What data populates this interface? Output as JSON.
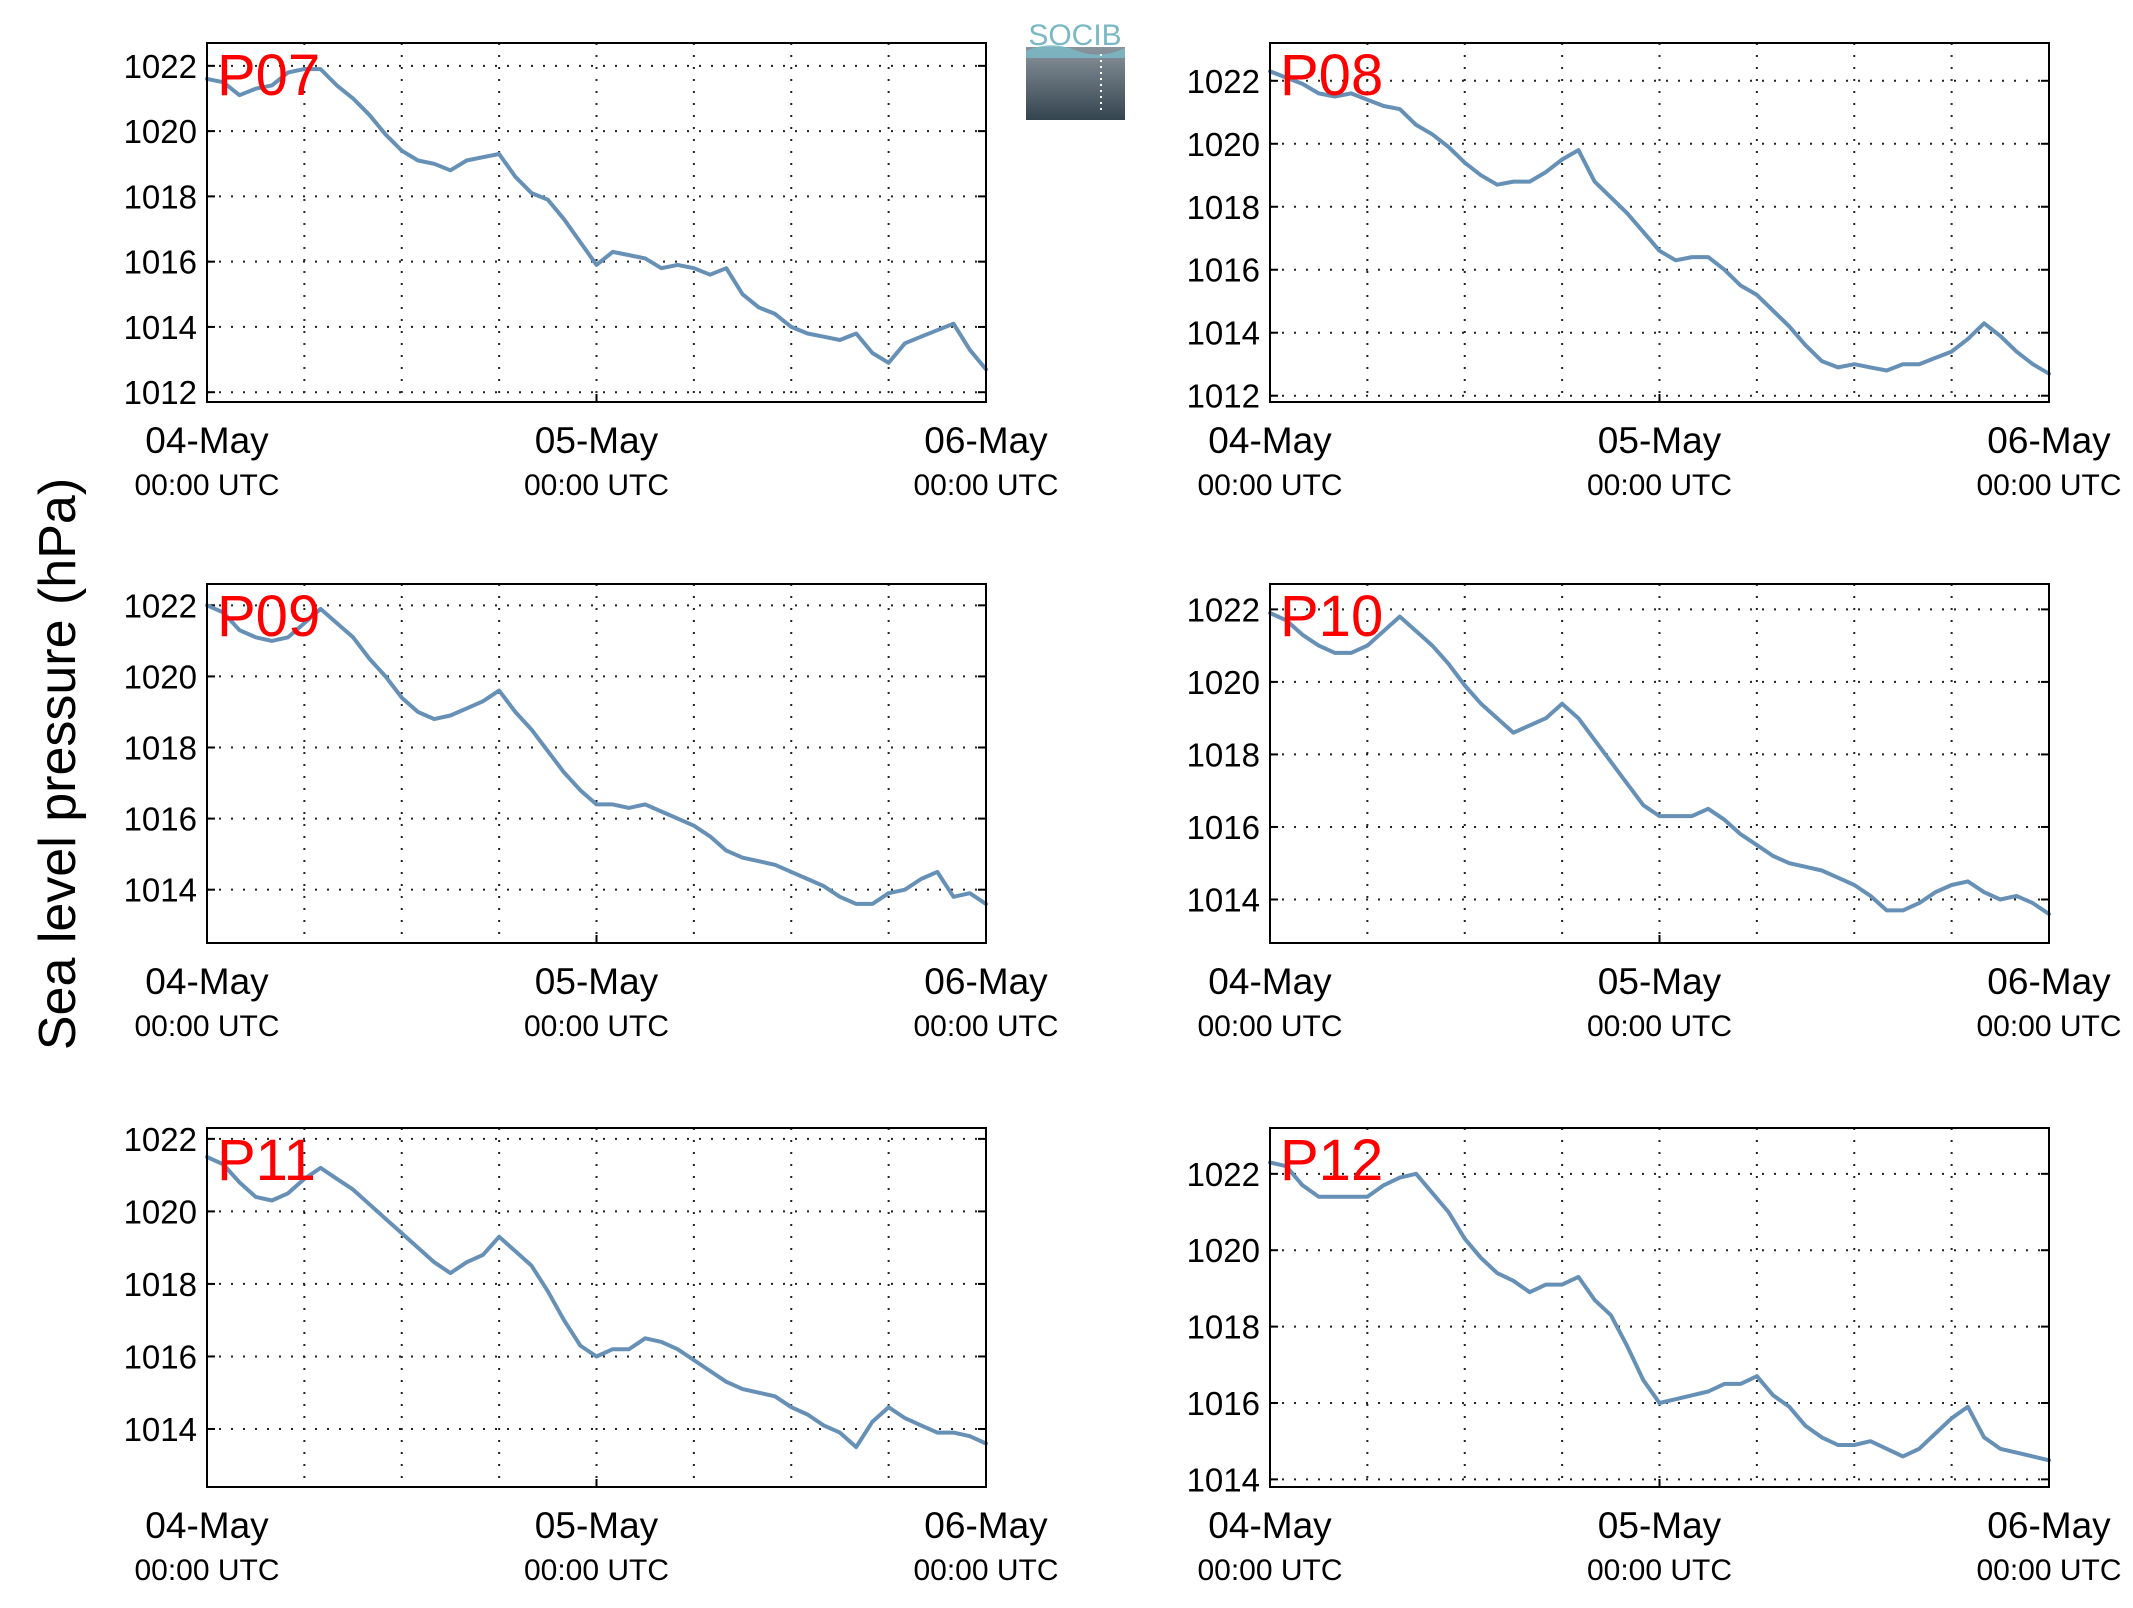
{
  "figure": {
    "ylabel": "Sea level pressure (hPa)",
    "logo": {
      "text": "SOCIB",
      "color_top": "#7ab8c6",
      "color_bottom": "#3a4a55"
    },
    "colors": {
      "line": "#6690b5",
      "panel_label": "#ff0000",
      "grid": "#222222"
    }
  },
  "chart_data": [
    {
      "type": "line",
      "title": "P07",
      "xlabel": "",
      "ylabel": "Sea level pressure (hPa)",
      "x_ticks": [
        {
          "line1": "04-May",
          "line2": "00:00 UTC",
          "hour": 0
        },
        {
          "line1": "05-May",
          "line2": "00:00 UTC",
          "hour": 24
        },
        {
          "line1": "06-May",
          "line2": "00:00 UTC",
          "hour": 48
        }
      ],
      "xlim_hours_from_04May_0000UTC": [
        0,
        48
      ],
      "ylim": [
        1011.7,
        1022.7
      ],
      "yticks": [
        1012,
        1014,
        1016,
        1018,
        1020,
        1022
      ],
      "grid": true,
      "series": [
        {
          "x_hours": [
            0,
            1,
            2,
            3,
            4,
            5,
            6,
            7,
            8,
            9,
            10,
            11,
            12,
            13,
            14,
            15,
            16,
            17,
            18,
            19,
            20,
            21,
            22,
            23,
            24,
            25,
            26,
            27,
            28,
            29,
            30,
            31,
            32,
            33,
            34,
            35,
            36,
            37,
            38,
            39,
            40,
            41,
            42,
            43,
            44,
            45,
            46,
            47,
            48
          ],
          "values": [
            1021.6,
            1021.5,
            1021.1,
            1021.3,
            1021.4,
            1021.8,
            1021.9,
            1021.9,
            1021.4,
            1021.0,
            1020.5,
            1019.9,
            1019.4,
            1019.1,
            1019.0,
            1018.8,
            1019.1,
            1019.2,
            1019.3,
            1018.6,
            1018.1,
            1017.9,
            1017.3,
            1016.6,
            1015.9,
            1016.3,
            1016.2,
            1016.1,
            1015.8,
            1015.9,
            1015.8,
            1015.6,
            1015.8,
            1015.0,
            1014.6,
            1014.4,
            1014.0,
            1013.8,
            1013.7,
            1013.6,
            1013.8,
            1013.2,
            1012.9,
            1013.5,
            1013.7,
            1013.9,
            1014.1,
            1013.3,
            1012.7
          ]
        }
      ]
    },
    {
      "type": "line",
      "title": "P08",
      "xlabel": "",
      "ylabel": "Sea level pressure (hPa)",
      "x_ticks": [
        {
          "line1": "04-May",
          "line2": "00:00 UTC",
          "hour": 0
        },
        {
          "line1": "05-May",
          "line2": "00:00 UTC",
          "hour": 24
        },
        {
          "line1": "06-May",
          "line2": "00:00 UTC",
          "hour": 48
        }
      ],
      "xlim_hours_from_04May_0000UTC": [
        0,
        48
      ],
      "ylim": [
        1011.8,
        1023.2
      ],
      "yticks": [
        1012,
        1014,
        1016,
        1018,
        1020,
        1022
      ],
      "grid": true,
      "series": [
        {
          "x_hours": [
            0,
            1,
            2,
            3,
            4,
            5,
            6,
            7,
            8,
            9,
            10,
            11,
            12,
            13,
            14,
            15,
            16,
            17,
            18,
            19,
            20,
            21,
            22,
            23,
            24,
            25,
            26,
            27,
            28,
            29,
            30,
            31,
            32,
            33,
            34,
            35,
            36,
            37,
            38,
            39,
            40,
            41,
            42,
            43,
            44,
            45,
            46,
            47,
            48
          ],
          "values": [
            1022.3,
            1022.1,
            1021.9,
            1021.6,
            1021.5,
            1021.6,
            1021.4,
            1021.2,
            1021.1,
            1020.6,
            1020.3,
            1019.9,
            1019.4,
            1019.0,
            1018.7,
            1018.8,
            1018.8,
            1019.1,
            1019.5,
            1019.8,
            1018.8,
            1018.3,
            1017.8,
            1017.2,
            1016.6,
            1016.3,
            1016.4,
            1016.4,
            1016.0,
            1015.5,
            1015.2,
            1014.7,
            1014.2,
            1013.6,
            1013.1,
            1012.9,
            1013.0,
            1012.9,
            1012.8,
            1013.0,
            1013.0,
            1013.2,
            1013.4,
            1013.8,
            1014.3,
            1013.9,
            1013.4,
            1013.0,
            1012.7
          ]
        }
      ]
    },
    {
      "type": "line",
      "title": "P09",
      "xlabel": "",
      "ylabel": "Sea level pressure (hPa)",
      "x_ticks": [
        {
          "line1": "04-May",
          "line2": "00:00 UTC",
          "hour": 0
        },
        {
          "line1": "05-May",
          "line2": "00:00 UTC",
          "hour": 24
        },
        {
          "line1": "06-May",
          "line2": "00:00 UTC",
          "hour": 48
        }
      ],
      "xlim_hours_from_04May_0000UTC": [
        0,
        48
      ],
      "ylim": [
        1012.5,
        1022.6
      ],
      "yticks": [
        1014,
        1016,
        1018,
        1020,
        1022
      ],
      "grid": true,
      "series": [
        {
          "x_hours": [
            0,
            1,
            2,
            3,
            4,
            5,
            6,
            7,
            8,
            9,
            10,
            11,
            12,
            13,
            14,
            15,
            16,
            17,
            18,
            19,
            20,
            21,
            22,
            23,
            24,
            25,
            26,
            27,
            28,
            29,
            30,
            31,
            32,
            33,
            34,
            35,
            36,
            37,
            38,
            39,
            40,
            41,
            42,
            43,
            44,
            45,
            46,
            47,
            48
          ],
          "values": [
            1022.0,
            1021.8,
            1021.3,
            1021.1,
            1021.0,
            1021.1,
            1021.5,
            1021.9,
            1021.5,
            1021.1,
            1020.5,
            1020.0,
            1019.4,
            1019.0,
            1018.8,
            1018.9,
            1019.1,
            1019.3,
            1019.6,
            1019.0,
            1018.5,
            1017.9,
            1017.3,
            1016.8,
            1016.4,
            1016.4,
            1016.3,
            1016.4,
            1016.2,
            1016.0,
            1015.8,
            1015.5,
            1015.1,
            1014.9,
            1014.8,
            1014.7,
            1014.5,
            1014.3,
            1014.1,
            1013.8,
            1013.6,
            1013.6,
            1013.9,
            1014.0,
            1014.3,
            1014.5,
            1013.8,
            1013.9,
            1013.6
          ]
        }
      ]
    },
    {
      "type": "line",
      "title": "P10",
      "xlabel": "",
      "ylabel": "Sea level pressure (hPa)",
      "x_ticks": [
        {
          "line1": "04-May",
          "line2": "00:00 UTC",
          "hour": 0
        },
        {
          "line1": "05-May",
          "line2": "00:00 UTC",
          "hour": 24
        },
        {
          "line1": "06-May",
          "line2": "00:00 UTC",
          "hour": 48
        }
      ],
      "xlim_hours_from_04May_0000UTC": [
        0,
        48
      ],
      "ylim": [
        1012.8,
        1022.7
      ],
      "yticks": [
        1014,
        1016,
        1018,
        1020,
        1022
      ],
      "grid": true,
      "series": [
        {
          "x_hours": [
            0,
            1,
            2,
            3,
            4,
            5,
            6,
            7,
            8,
            9,
            10,
            11,
            12,
            13,
            14,
            15,
            16,
            17,
            18,
            19,
            20,
            21,
            22,
            23,
            24,
            25,
            26,
            27,
            28,
            29,
            30,
            31,
            32,
            33,
            34,
            35,
            36,
            37,
            38,
            39,
            40,
            41,
            42,
            43,
            44,
            45,
            46,
            47,
            48
          ],
          "values": [
            1021.9,
            1021.7,
            1021.3,
            1021.0,
            1020.8,
            1020.8,
            1021.0,
            1021.4,
            1021.8,
            1021.4,
            1021.0,
            1020.5,
            1019.9,
            1019.4,
            1019.0,
            1018.6,
            1018.8,
            1019.0,
            1019.4,
            1019.0,
            1018.4,
            1017.8,
            1017.2,
            1016.6,
            1016.3,
            1016.3,
            1016.3,
            1016.5,
            1016.2,
            1015.8,
            1015.5,
            1015.2,
            1015.0,
            1014.9,
            1014.8,
            1014.6,
            1014.4,
            1014.1,
            1013.7,
            1013.7,
            1013.9,
            1014.2,
            1014.4,
            1014.5,
            1014.2,
            1014.0,
            1014.1,
            1013.9,
            1013.6
          ]
        }
      ]
    },
    {
      "type": "line",
      "title": "P11",
      "xlabel": "",
      "ylabel": "Sea level pressure (hPa)",
      "x_ticks": [
        {
          "line1": "04-May",
          "line2": "00:00 UTC",
          "hour": 0
        },
        {
          "line1": "05-May",
          "line2": "00:00 UTC",
          "hour": 24
        },
        {
          "line1": "06-May",
          "line2": "00:00 UTC",
          "hour": 48
        }
      ],
      "xlim_hours_from_04May_0000UTC": [
        0,
        48
      ],
      "ylim": [
        1012.4,
        1022.3
      ],
      "yticks": [
        1014,
        1016,
        1018,
        1020,
        1022
      ],
      "grid": true,
      "series": [
        {
          "x_hours": [
            0,
            1,
            2,
            3,
            4,
            5,
            6,
            7,
            8,
            9,
            10,
            11,
            12,
            13,
            14,
            15,
            16,
            17,
            18,
            19,
            20,
            21,
            22,
            23,
            24,
            25,
            26,
            27,
            28,
            29,
            30,
            31,
            32,
            33,
            34,
            35,
            36,
            37,
            38,
            39,
            40,
            41,
            42,
            43,
            44,
            45,
            46,
            47,
            48
          ],
          "values": [
            1021.5,
            1021.3,
            1020.8,
            1020.4,
            1020.3,
            1020.5,
            1020.9,
            1021.2,
            1020.9,
            1020.6,
            1020.2,
            1019.8,
            1019.4,
            1019.0,
            1018.6,
            1018.3,
            1018.6,
            1018.8,
            1019.3,
            1018.9,
            1018.5,
            1017.8,
            1017.0,
            1016.3,
            1016.0,
            1016.2,
            1016.2,
            1016.5,
            1016.4,
            1016.2,
            1015.9,
            1015.6,
            1015.3,
            1015.1,
            1015.0,
            1014.9,
            1014.6,
            1014.4,
            1014.1,
            1013.9,
            1013.5,
            1014.2,
            1014.6,
            1014.3,
            1014.1,
            1013.9,
            1013.9,
            1013.8,
            1013.6
          ]
        }
      ]
    },
    {
      "type": "line",
      "title": "P12",
      "xlabel": "",
      "ylabel": "Sea level pressure (hPa)",
      "x_ticks": [
        {
          "line1": "04-May",
          "line2": "00:00 UTC",
          "hour": 0
        },
        {
          "line1": "05-May",
          "line2": "00:00 UTC",
          "hour": 24
        },
        {
          "line1": "06-May",
          "line2": "00:00 UTC",
          "hour": 48
        }
      ],
      "xlim_hours_from_04May_0000UTC": [
        0,
        48
      ],
      "ylim": [
        1013.8,
        1023.2
      ],
      "yticks": [
        1014,
        1016,
        1018,
        1020,
        1022
      ],
      "grid": true,
      "series": [
        {
          "x_hours": [
            0,
            1,
            2,
            3,
            4,
            5,
            6,
            7,
            8,
            9,
            10,
            11,
            12,
            13,
            14,
            15,
            16,
            17,
            18,
            19,
            20,
            21,
            22,
            23,
            24,
            25,
            26,
            27,
            28,
            29,
            30,
            31,
            32,
            33,
            34,
            35,
            36,
            37,
            38,
            39,
            40,
            41,
            42,
            43,
            44,
            45,
            46,
            47,
            48
          ],
          "values": [
            1022.3,
            1022.2,
            1021.7,
            1021.4,
            1021.4,
            1021.4,
            1021.4,
            1021.7,
            1021.9,
            1022.0,
            1021.5,
            1021.0,
            1020.3,
            1019.8,
            1019.4,
            1019.2,
            1018.9,
            1019.1,
            1019.1,
            1019.3,
            1018.7,
            1018.3,
            1017.5,
            1016.6,
            1016.0,
            1016.1,
            1016.2,
            1016.3,
            1016.5,
            1016.5,
            1016.7,
            1016.2,
            1015.9,
            1015.4,
            1015.1,
            1014.9,
            1014.9,
            1015.0,
            1014.8,
            1014.6,
            1014.8,
            1015.2,
            1015.6,
            1015.9,
            1015.1,
            1014.8,
            1014.7,
            1014.6,
            1014.5
          ]
        }
      ]
    }
  ]
}
